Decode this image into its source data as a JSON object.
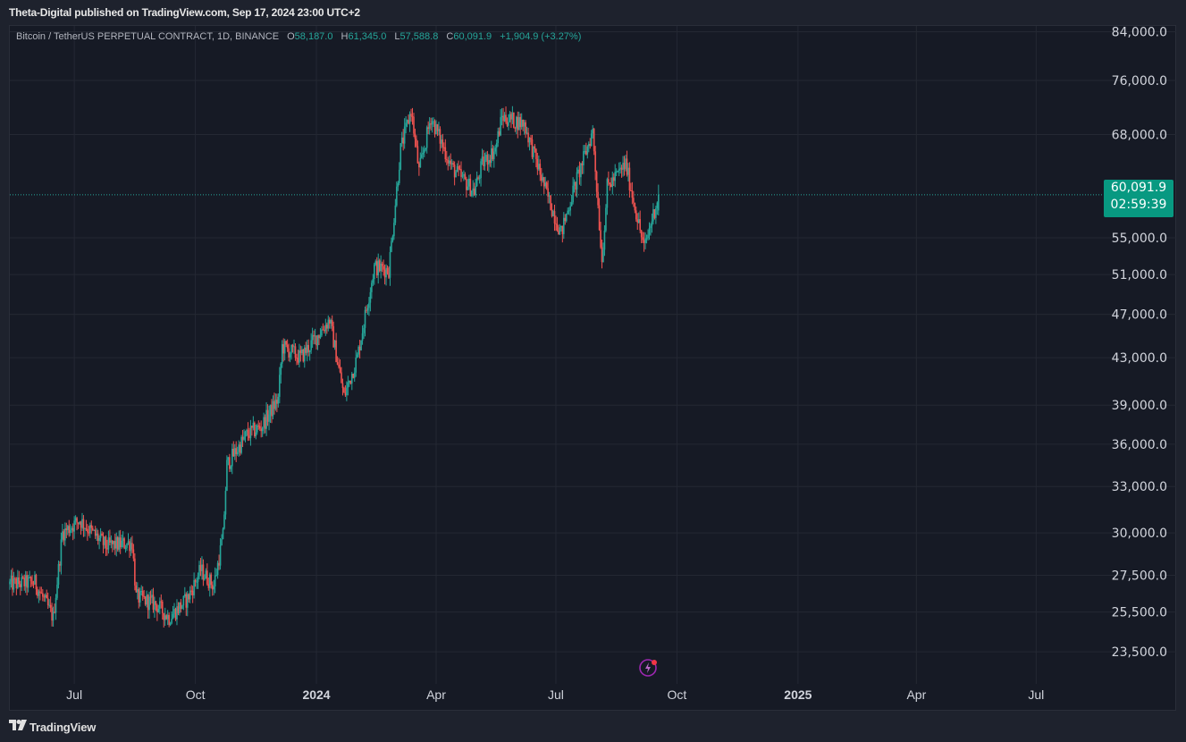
{
  "header": {
    "publisher_line": "Theta-Digital published on TradingView.com, Sep 17, 2024 23:00 UTC+2"
  },
  "legend": {
    "symbol": "Bitcoin / TetherUS PERPETUAL CONTRACT, 1D, BINANCE",
    "o_label": "O",
    "o_value": "58,187.0",
    "h_label": "H",
    "h_value": "61,345.0",
    "l_label": "L",
    "l_value": "57,588.8",
    "c_label": "C",
    "c_value": "60,091.9",
    "change": "+1,904.9 (+3.27%)"
  },
  "price_badge": {
    "price": "60,091.9",
    "countdown": "02:59:39"
  },
  "footer": {
    "brand": "TradingView"
  },
  "colors": {
    "up": "#26a69a",
    "down": "#ef5350",
    "badge": "#089981",
    "background": "#161a25",
    "grid": "#242833"
  },
  "icons": {
    "footer_logo": "tradingview-logo-icon",
    "alert": "lightning-bolt-icon"
  },
  "chart_data": {
    "type": "candlestick",
    "symbol": "Bitcoin / TetherUS PERPETUAL CONTRACT",
    "interval": "1D",
    "exchange": "BINANCE",
    "y_scale": "log",
    "ylim": [
      22000,
      85000
    ],
    "y_ticks": [
      84000,
      76000,
      68000,
      60091.9,
      55000,
      51000,
      47000,
      43000,
      39000,
      36000,
      33000,
      30000,
      27500,
      25500,
      23500
    ],
    "y_tick_labels": [
      "84,000.0",
      "76,000.0",
      "68,000.0",
      "60,091.9",
      "55,000.0",
      "51,000.0",
      "47,000.0",
      "43,000.0",
      "39,000.0",
      "36,000.0",
      "33,000.0",
      "30,000.0",
      "27,500.0",
      "25,500.0",
      "23,500.0"
    ],
    "x_ticks": [
      {
        "date": "2023-07-01",
        "label": "Jul",
        "bold": false
      },
      {
        "date": "2023-10-01",
        "label": "Oct",
        "bold": false
      },
      {
        "date": "2024-01-01",
        "label": "2024",
        "bold": true
      },
      {
        "date": "2024-04-01",
        "label": "Apr",
        "bold": false
      },
      {
        "date": "2024-07-01",
        "label": "Jul",
        "bold": false
      },
      {
        "date": "2024-10-01",
        "label": "Oct",
        "bold": false
      },
      {
        "date": "2025-01-01",
        "label": "2025",
        "bold": true
      },
      {
        "date": "2025-04-01",
        "label": "Apr",
        "bold": false
      },
      {
        "date": "2025-07-01",
        "label": "Jul",
        "bold": false
      }
    ],
    "x_range": [
      "2023-05-13",
      "2025-08-18"
    ],
    "last_close": 60091.9,
    "last_date": "2024-09-17",
    "price_path": [
      [
        "2023-05-13",
        27000
      ],
      [
        "2023-06-01",
        27100
      ],
      [
        "2023-06-15",
        25200
      ],
      [
        "2023-06-22",
        30000
      ],
      [
        "2023-07-05",
        30800
      ],
      [
        "2023-07-25",
        29200
      ],
      [
        "2023-08-14",
        29400
      ],
      [
        "2023-08-17",
        26300
      ],
      [
        "2023-09-01",
        25900
      ],
      [
        "2023-09-11",
        25200
      ],
      [
        "2023-09-25",
        26200
      ],
      [
        "2023-10-05",
        27800
      ],
      [
        "2023-10-15",
        26900
      ],
      [
        "2023-10-22",
        29800
      ],
      [
        "2023-10-25",
        34500
      ],
      [
        "2023-11-09",
        36700
      ],
      [
        "2023-11-20",
        37300
      ],
      [
        "2023-12-03",
        39500
      ],
      [
        "2023-12-06",
        44000
      ],
      [
        "2023-12-20",
        43000
      ],
      [
        "2024-01-11",
        46500
      ],
      [
        "2024-01-22",
        39700
      ],
      [
        "2024-02-01",
        43000
      ],
      [
        "2024-02-14",
        51800
      ],
      [
        "2024-02-25",
        51500
      ],
      [
        "2024-03-05",
        66000
      ],
      [
        "2024-03-13",
        71500
      ],
      [
        "2024-03-19",
        63000
      ],
      [
        "2024-03-28",
        70500
      ],
      [
        "2024-04-13",
        63500
      ],
      [
        "2024-04-30",
        60500
      ],
      [
        "2024-05-06",
        64000
      ],
      [
        "2024-05-16",
        66000
      ],
      [
        "2024-05-21",
        70500
      ],
      [
        "2024-06-07",
        69500
      ],
      [
        "2024-06-24",
        60200
      ],
      [
        "2024-07-05",
        55500
      ],
      [
        "2024-07-14",
        60500
      ],
      [
        "2024-07-29",
        68500
      ],
      [
        "2024-08-05",
        52500
      ],
      [
        "2024-08-09",
        61000
      ],
      [
        "2024-08-23",
        64000
      ],
      [
        "2024-09-06",
        53800
      ],
      [
        "2024-09-17",
        60091.9
      ]
    ],
    "ohlc_last": {
      "open": 58187.0,
      "high": 61345.0,
      "low": 57588.8,
      "close": 60091.9
    }
  }
}
